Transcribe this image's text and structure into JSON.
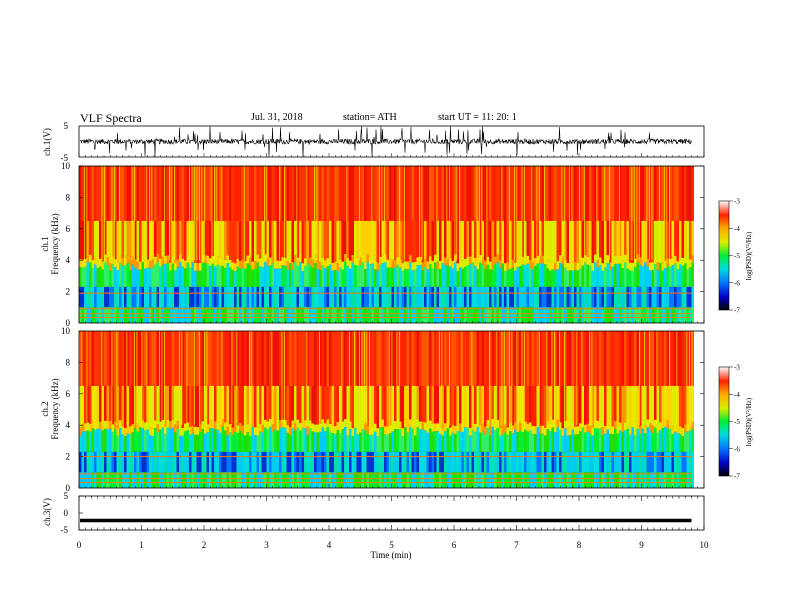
{
  "header": {
    "title": "VLF  Spectra",
    "date": "Jul.  31, 2018",
    "station": "station= ATH",
    "start": "start  UT  =    11: 20: 1"
  },
  "chart_data": [
    {
      "type": "line",
      "name": "ch1-waveform",
      "ylabel": "ch.1(V)",
      "ylim": [
        -5,
        5
      ],
      "yticks": [
        "5",
        "-5"
      ],
      "xlim": [
        0,
        10
      ],
      "data_end_min": 9.8,
      "trace_color": "#000000",
      "amplitude_v": 1.4,
      "grid": false
    },
    {
      "type": "heatmap",
      "name": "ch1-spectrogram",
      "ylabel": "ch.1\nFrequency  (kHz)",
      "ylim_khz": [
        0,
        10
      ],
      "yticks": [
        "0",
        "2",
        "4",
        "6",
        "8",
        "10"
      ],
      "xlim": [
        0,
        10
      ],
      "data_end_min": 9.8,
      "band_edge_khz": 3.6,
      "lines_khz": [
        0.35,
        0.6,
        0.9,
        1.9
      ]
    },
    {
      "type": "heatmap",
      "name": "ch2-spectrogram",
      "ylabel": "ch.2\nFrequency  (kHz)",
      "ylim_khz": [
        0,
        10
      ],
      "yticks": [
        "0",
        "2",
        "4",
        "6",
        "8",
        "10"
      ],
      "xlim": [
        0,
        10
      ],
      "data_end_min": 9.8,
      "band_edge_khz": 3.6,
      "lines_khz": [
        0.35,
        0.6,
        0.9,
        2.0
      ]
    },
    {
      "type": "line",
      "name": "ch3-waveform",
      "ylabel": "ch.3(V)",
      "ylim": [
        -5,
        5
      ],
      "yticks": [
        "5",
        "0",
        "-5"
      ],
      "xlim": [
        0,
        10
      ],
      "data_end_min": 9.8,
      "level_v": -2.2,
      "trace_color": "#000000",
      "xlabel": "Time  (min)",
      "xticks": [
        "0",
        "1",
        "2",
        "3",
        "4",
        "5",
        "6",
        "7",
        "8",
        "9",
        "10"
      ]
    }
  ],
  "colorbars": [
    {
      "label": "log(PSD)(V²/Hz)",
      "range": [
        -7,
        -3
      ],
      "ticks": [
        "-3",
        "-4",
        "-5",
        "-6",
        "-7"
      ],
      "colors": [
        "#000000",
        "#0000cc",
        "#0077ff",
        "#00dddd",
        "#00ee33",
        "#d8ee00",
        "#ffaa00",
        "#ff2200",
        "#ffffff"
      ]
    },
    {
      "label": "log(PSD)(V²/Hz)",
      "range": [
        -7,
        -3
      ],
      "ticks": [
        "-3",
        "-4",
        "-5",
        "-6",
        "-7"
      ],
      "colors": [
        "#000000",
        "#0000cc",
        "#0077ff",
        "#00dddd",
        "#00ee33",
        "#d8ee00",
        "#ffaa00",
        "#ff2200",
        "#ffffff"
      ]
    }
  ]
}
